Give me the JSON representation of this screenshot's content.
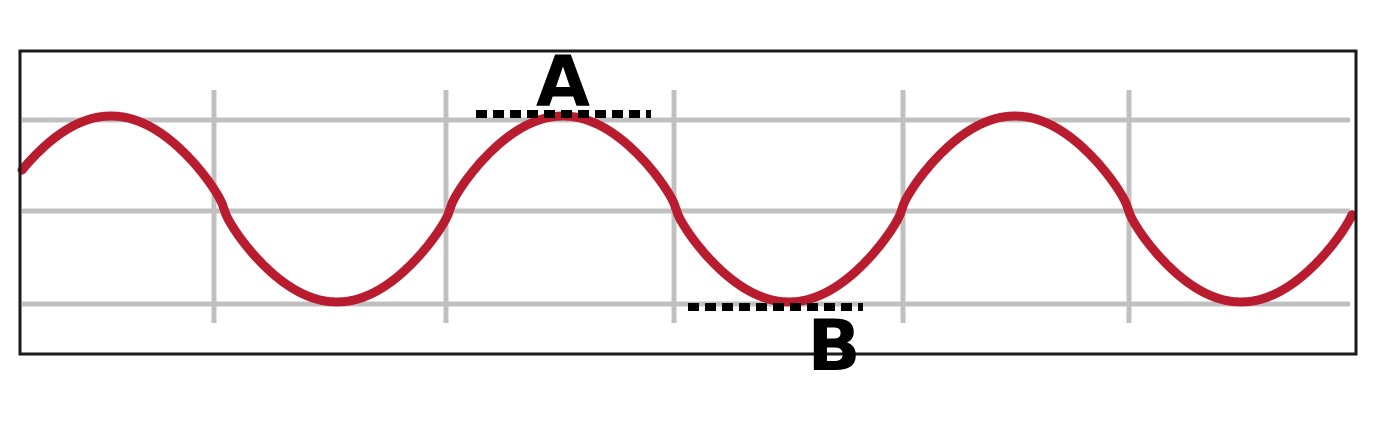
{
  "labels": {
    "crest": "A",
    "trough": "B"
  },
  "wave": {
    "type": "sine",
    "cycles_shown": 3,
    "crest_level": 1,
    "trough_level": -1,
    "midline_level": 0
  },
  "colors": {
    "wave": "#b81c2e",
    "grid": "#c0c0c0",
    "frame": "#1a1a1a",
    "marker": "#000000",
    "background": "#ffffff"
  }
}
